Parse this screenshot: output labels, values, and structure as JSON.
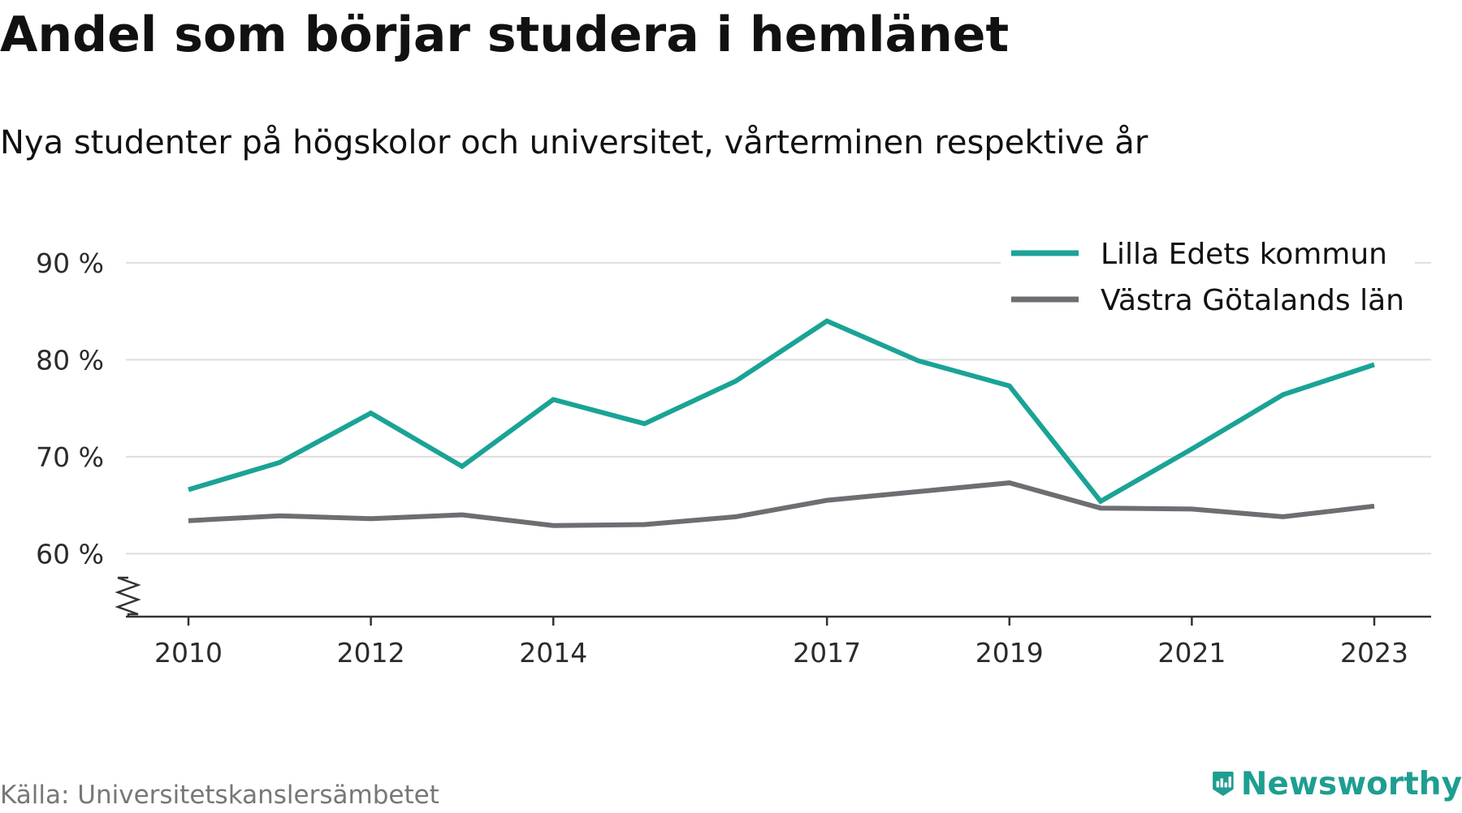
{
  "chart_data": {
    "type": "line",
    "title": "Andel som börjar studera i hemlänet",
    "subtitle": "Nya studenter på högskolor och universitet, vårterminen respektive år",
    "x": [
      2010,
      2011,
      2012,
      2013,
      2014,
      2015,
      2016,
      2017,
      2018,
      2019,
      2020,
      2021,
      2022,
      2023
    ],
    "x_ticks": [
      2010,
      2012,
      2014,
      2017,
      2019,
      2021,
      2023
    ],
    "y_ticks": [
      60,
      70,
      80,
      90
    ],
    "y_tick_labels": [
      "60 %",
      "70 %",
      "80 %",
      "90 %"
    ],
    "ylim": [
      53.5,
      92
    ],
    "grid": true,
    "axis_break": true,
    "legend_position": "top-right",
    "series": [
      {
        "name": "Lilla Edets kommun",
        "color": "#1aa396",
        "values": [
          66.6,
          69.4,
          74.5,
          69.0,
          75.9,
          73.4,
          77.8,
          84.0,
          79.9,
          77.3,
          65.4,
          70.8,
          76.4,
          79.5
        ]
      },
      {
        "name": "Västra Götalands län",
        "color": "#6e6d72",
        "values": [
          63.4,
          63.9,
          63.6,
          64.0,
          62.9,
          63.0,
          63.8,
          65.5,
          66.4,
          67.3,
          64.7,
          64.6,
          63.8,
          64.9
        ]
      }
    ]
  },
  "footer": {
    "source": "Källa: Universitetskanslersämbetet",
    "brand": "Newsworthy",
    "brand_color": "#1e9e91",
    "brand_icon": "newsworthy-logo-icon"
  }
}
